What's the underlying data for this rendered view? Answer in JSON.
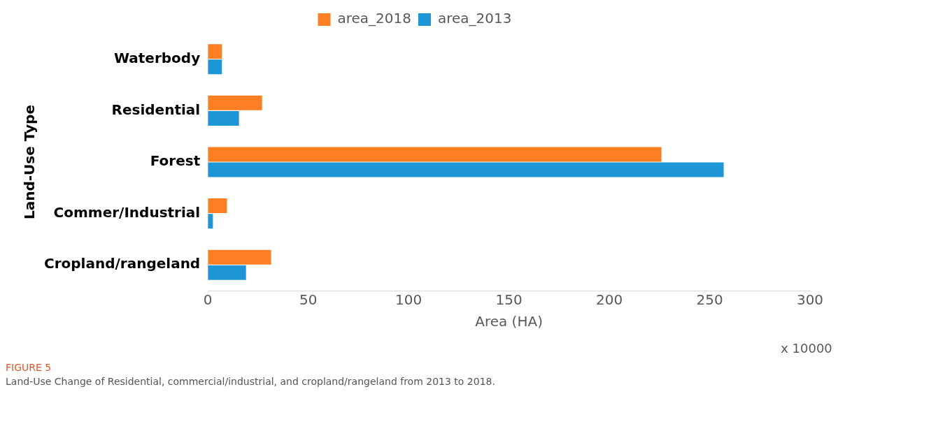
{
  "chart_data": {
    "type": "bar",
    "orientation": "horizontal",
    "ylabel": "Land-Use Type",
    "xlabel": "Area (HA)",
    "categories": [
      "Waterbody",
      "Residential",
      "Forest",
      "Commer/Industrial",
      "Cropland/rangeland"
    ],
    "series": [
      {
        "name": "area_2018",
        "color": "#fd7f23",
        "values": [
          7,
          27,
          226,
          9.5,
          31.5
        ]
      },
      {
        "name": "area_2013",
        "color": "#1e96d6",
        "values": [
          7,
          15.5,
          257,
          2.5,
          19
        ]
      }
    ],
    "xlim": [
      0,
      300
    ],
    "xticks": [
      0,
      50,
      100,
      150,
      200,
      250,
      300
    ],
    "grid": false,
    "legend": "top",
    "annotations": [
      "x 10000",
      "FIGURE 5",
      "Land-Use Change of Residential, commercial/industrial, and cropland/rangeland from 2013 to 2018."
    ]
  }
}
